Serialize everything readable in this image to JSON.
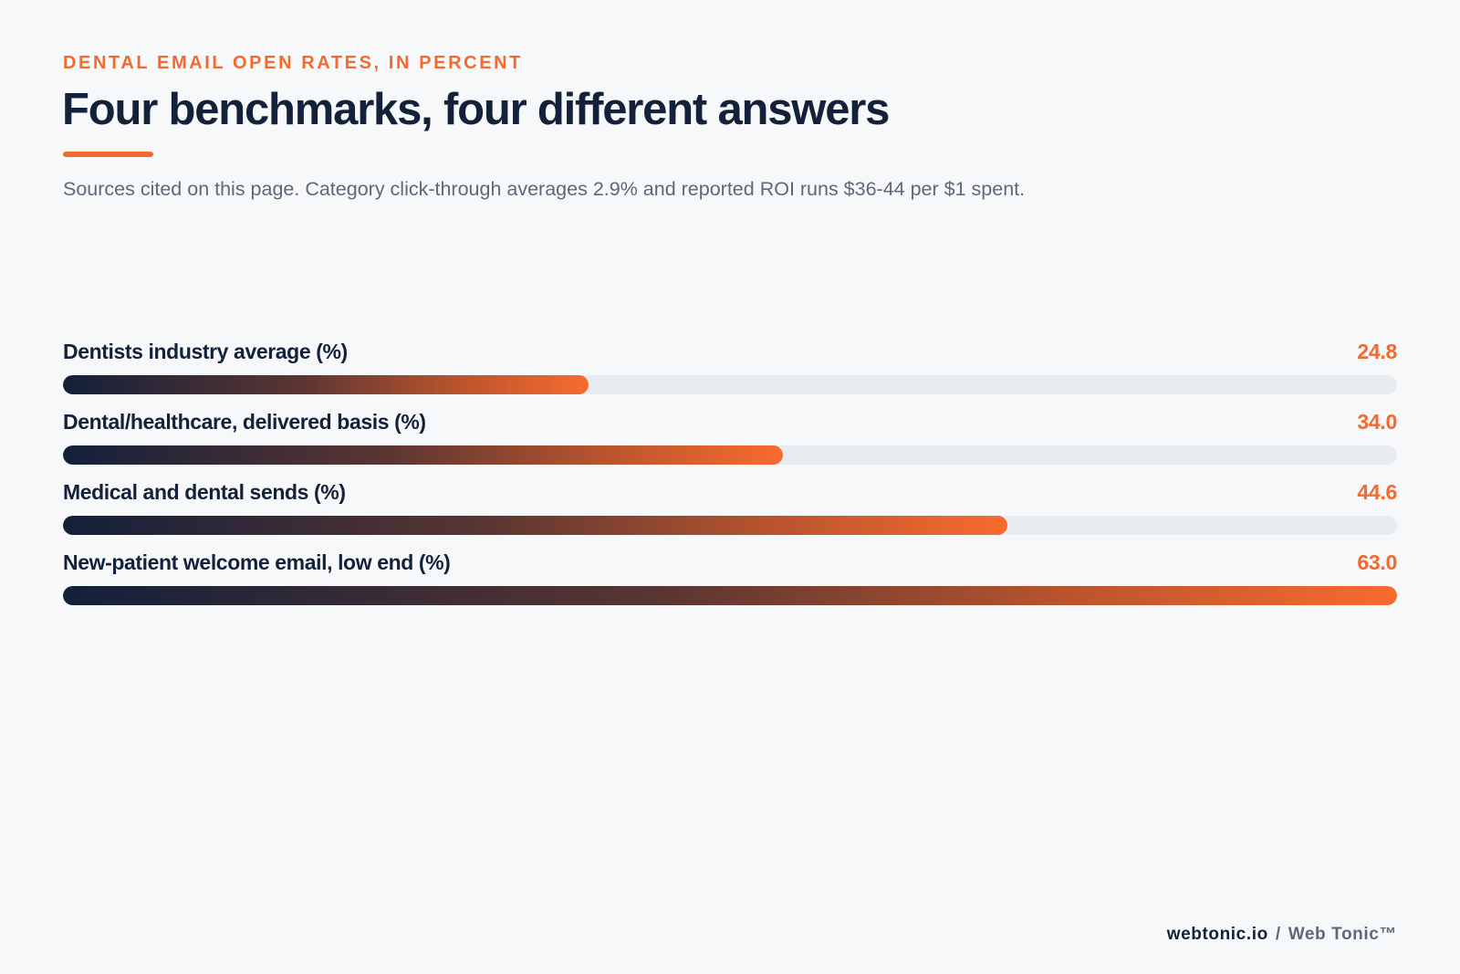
{
  "header": {
    "eyebrow": "DENTAL EMAIL OPEN RATES, IN PERCENT",
    "title": "Four benchmarks, four different answers",
    "subtitle": "Sources cited on this page. Category click-through averages 2.9% and reported ROI runs $36-44 per $1 spent."
  },
  "colors": {
    "accent": "#f26a2e",
    "navy": "#13213a",
    "track": "#e8ebef",
    "background": "#f7f8fa"
  },
  "chart_data": {
    "type": "bar",
    "orientation": "horizontal",
    "categories": [
      "Dentists industry average (%)",
      "Dental/healthcare, delivered basis (%)",
      "Medical and dental sends (%)",
      "New-patient welcome email, low end (%)"
    ],
    "values": [
      24.8,
      34.0,
      44.6,
      63.0
    ],
    "value_labels": [
      "24.8",
      "34.0",
      "44.6",
      "63.0"
    ],
    "xlim": [
      0,
      63.0
    ],
    "grid": false,
    "legend": "none"
  },
  "footer": {
    "domain": "webtonic.io",
    "separator": "/",
    "brand": "Web Tonic™"
  }
}
